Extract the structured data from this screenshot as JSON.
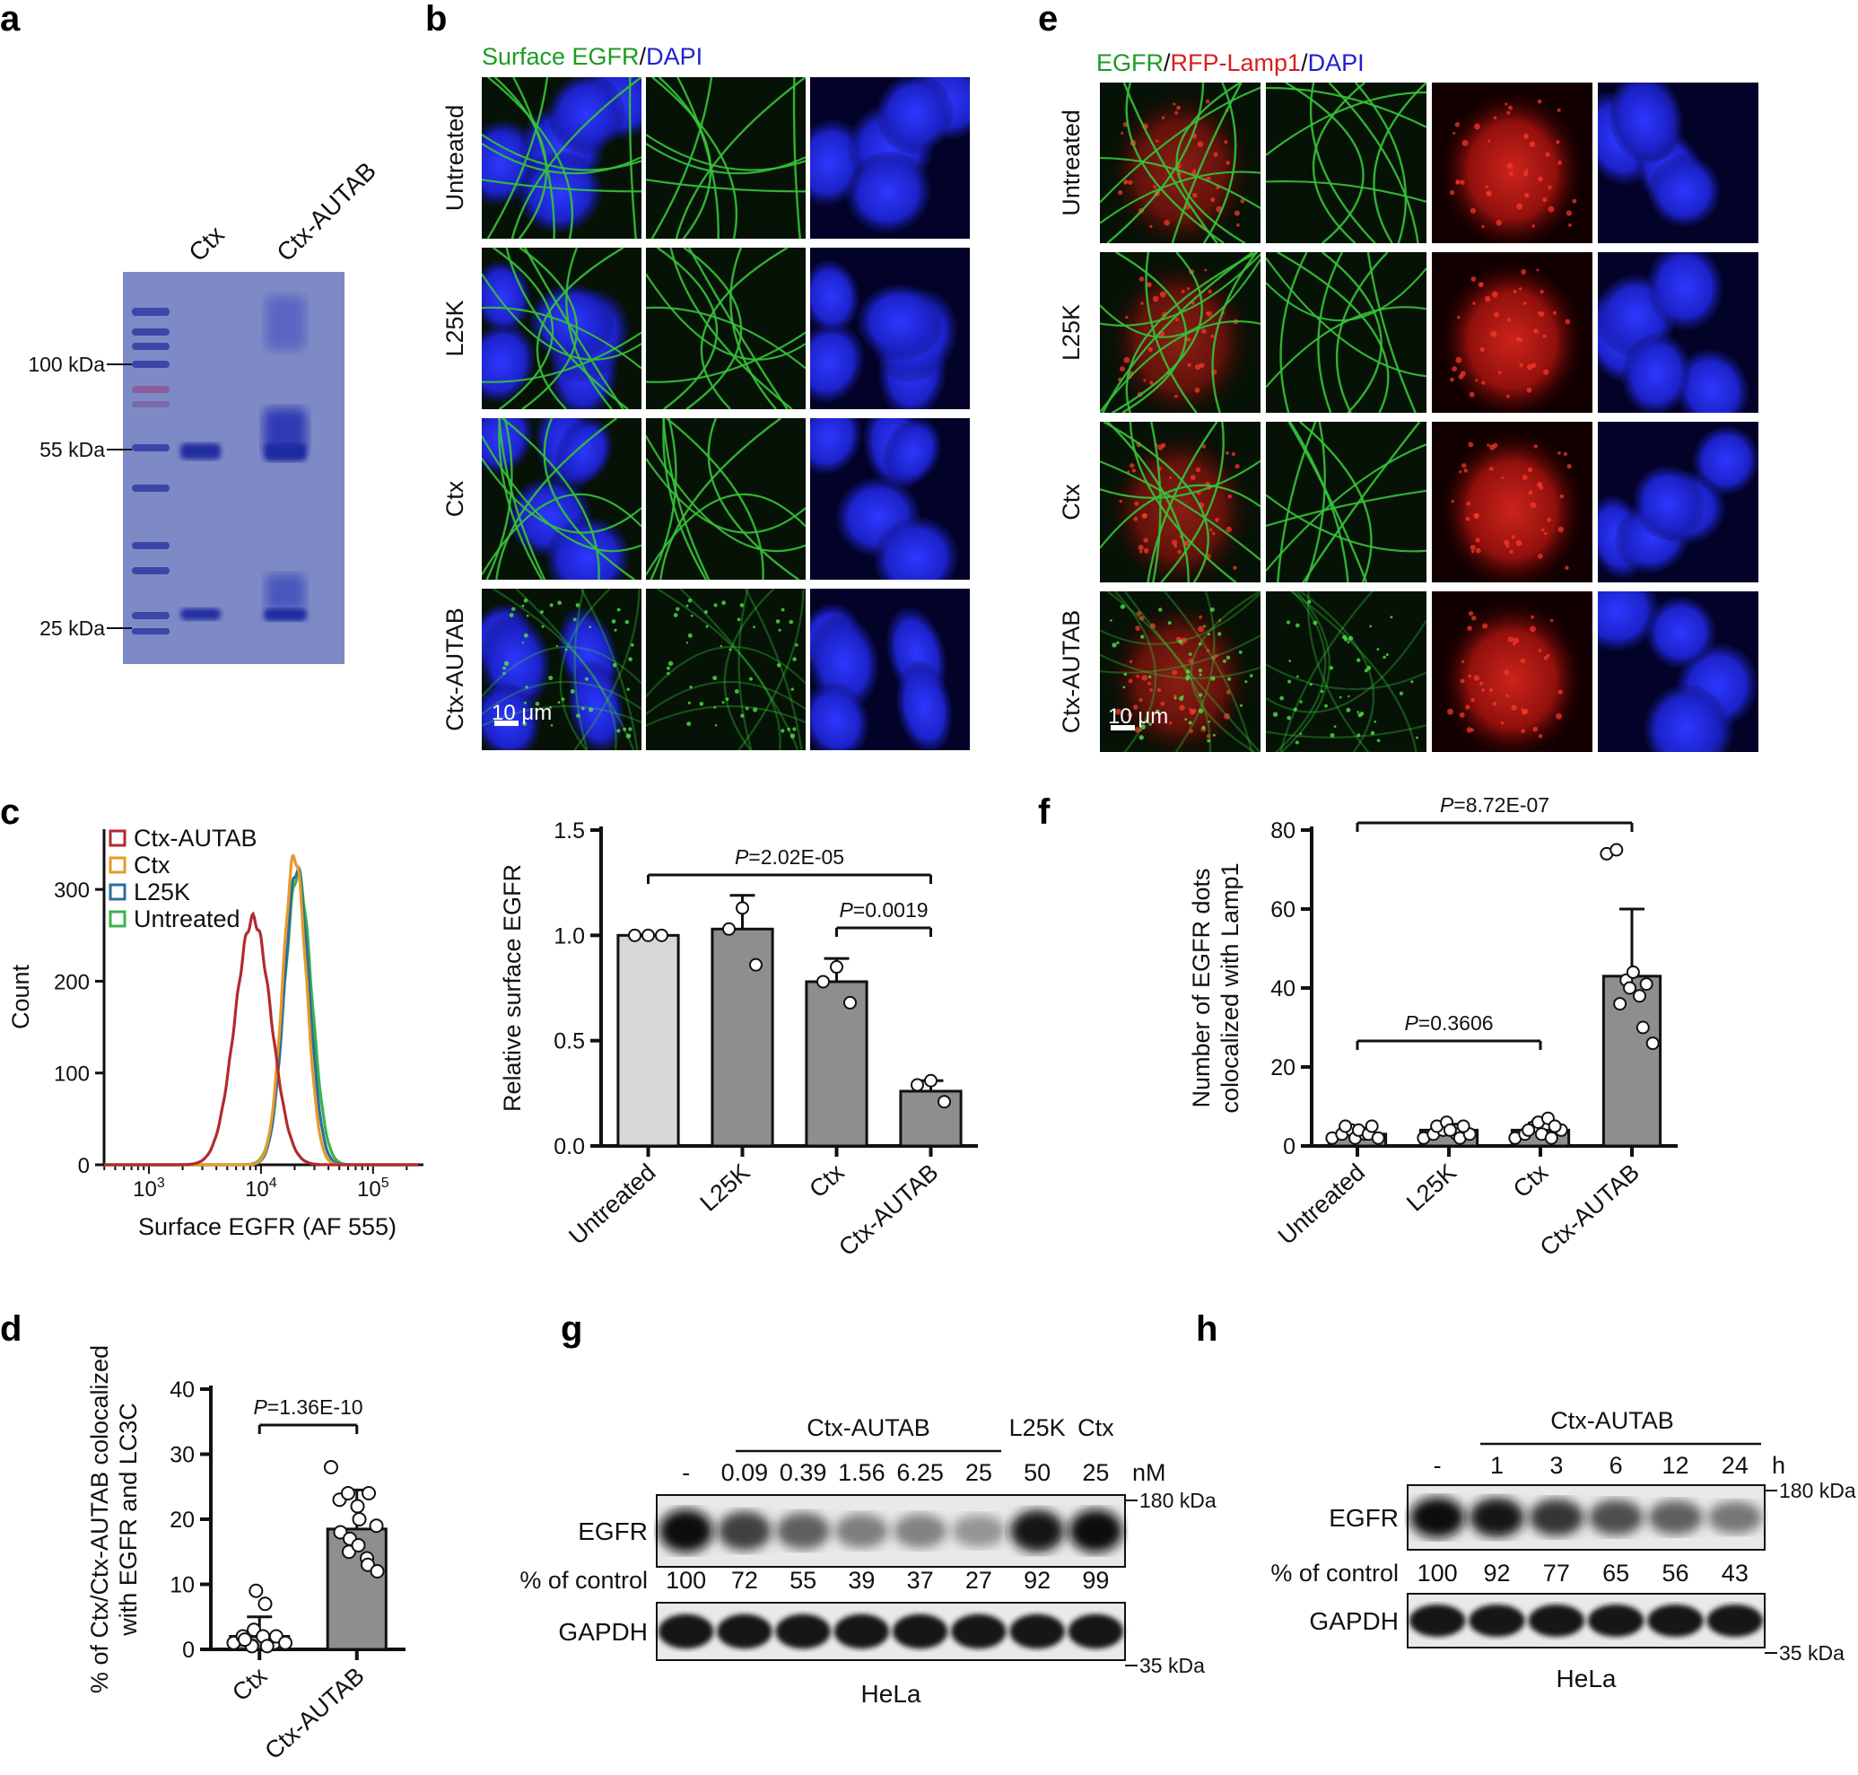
{
  "panel_labels": [
    "a",
    "b",
    "c",
    "d",
    "e",
    "f",
    "g",
    "h"
  ],
  "panel_a": {
    "lanes": [
      "Ctx",
      "Ctx-AUTAB"
    ],
    "markers": [
      "100 kDa",
      "55 kDa",
      "25 kDa"
    ],
    "colors": {
      "gel": "#7f8cc6",
      "band": "#2a36a8"
    }
  },
  "panel_b": {
    "title_green": "Surface EGFR",
    "title_sep": "/",
    "title_blue": "DAPI",
    "rows": [
      "Untreated",
      "L25K",
      "Ctx",
      "Ctx-AUTAB"
    ],
    "scale_bar": "10 μm"
  },
  "panel_e": {
    "title_green": "EGFR",
    "sep1": "/",
    "title_red": "RFP-Lamp1",
    "sep2": "/",
    "title_blue": "DAPI",
    "rows": [
      "Untreated",
      "L25K",
      "Ctx",
      "Ctx-AUTAB"
    ],
    "scale_bar": "10 μm"
  },
  "panel_c_hist": {
    "ylabel": "Count",
    "xlabel": "Surface EGFR (AF 555)",
    "yticks": [
      "0",
      "100",
      "200",
      "300"
    ],
    "xticks": [
      {
        "base": "10",
        "exp": "3"
      },
      {
        "base": "10",
        "exp": "4"
      },
      {
        "base": "10",
        "exp": "5"
      }
    ],
    "legend": [
      {
        "name": "Ctx-AUTAB",
        "color": "#b22a2f"
      },
      {
        "name": "Ctx",
        "color": "#e79a28"
      },
      {
        "name": "L25K",
        "color": "#2b6e9e"
      },
      {
        "name": "Untreated",
        "color": "#3bb34a"
      }
    ]
  },
  "chart_data": [
    {
      "type": "bar",
      "panel": "c",
      "categories": [
        "Untreated",
        "L25K",
        "Ctx",
        "Ctx-AUTAB"
      ],
      "values": [
        1.0,
        1.03,
        0.78,
        0.26
      ],
      "errors": [
        0.0,
        0.16,
        0.11,
        0.05
      ],
      "points": [
        [
          1.0,
          1.0,
          1.0
        ],
        [
          1.03,
          1.13,
          0.86
        ],
        [
          0.78,
          0.85,
          0.68
        ],
        [
          0.29,
          0.31,
          0.21
        ]
      ],
      "ylabel": "Relative surface EGFR",
      "ylim": [
        0,
        1.5
      ],
      "yticks": [
        "0.0",
        "0.5",
        "1.0",
        "1.5"
      ],
      "bar_colors": [
        "#d7d7d7",
        "#8e8e8e",
        "#8e8e8e",
        "#8e8e8e"
      ],
      "brackets": [
        {
          "from": 0,
          "to": 3,
          "p": "=2.02E-05"
        },
        {
          "from": 2,
          "to": 3,
          "p": "=0.0019"
        }
      ]
    },
    {
      "type": "bar",
      "panel": "f",
      "categories": [
        "Untreated",
        "L25K",
        "Ctx",
        "Ctx-AUTAB"
      ],
      "values": [
        3,
        4,
        4,
        43
      ],
      "errors": [
        1.5,
        1.5,
        1.8,
        17
      ],
      "points": [
        [
          2,
          3,
          4,
          5,
          2,
          3,
          4,
          3,
          2,
          5
        ],
        [
          2,
          3,
          4,
          5,
          6,
          3,
          4,
          2,
          3,
          5
        ],
        [
          2,
          3,
          5,
          4,
          6,
          7,
          3,
          2,
          4,
          5
        ],
        [
          74,
          75,
          42,
          36,
          40,
          38,
          44,
          30,
          26,
          41
        ]
      ],
      "ylabel_line1": "Number of EGFR dots",
      "ylabel_line2": "colocalized with Lamp1",
      "ylim": [
        0,
        80
      ],
      "yticks": [
        "0",
        "20",
        "40",
        "60",
        "80"
      ],
      "bar_colors": [
        "#8e8e8e",
        "#8e8e8e",
        "#8e8e8e",
        "#8e8e8e"
      ],
      "brackets": [
        {
          "from": 0,
          "to": 3,
          "p": "=8.72E-07"
        },
        {
          "from": 0,
          "to": 2,
          "p": "=0.3606"
        }
      ]
    },
    {
      "type": "bar",
      "panel": "d",
      "categories": [
        "Ctx",
        "Ctx-AUTAB"
      ],
      "values": [
        2,
        18.5
      ],
      "errors": [
        3,
        6
      ],
      "points": [
        [
          1,
          2,
          0.5,
          1.5,
          3,
          2,
          9,
          7,
          1,
          0.5,
          2,
          1
        ],
        [
          28,
          23,
          24,
          18,
          15,
          22,
          17,
          16,
          14,
          20,
          13,
          19,
          24,
          12
        ]
      ],
      "ylabel_line1": "% of Ctx/Ctx-AUTAB colocalized",
      "ylabel_line2": "with EGFR and LC3C",
      "ylim": [
        0,
        40
      ],
      "yticks": [
        "0",
        "10",
        "20",
        "30",
        "40"
      ],
      "bar_colors": [
        "#8e8e8e",
        "#8e8e8e"
      ],
      "brackets": [
        {
          "from": 0,
          "to": 1,
          "p": "=1.36E-10"
        }
      ]
    }
  ],
  "p_letter": "P",
  "panel_g": {
    "group_label": "Ctx-AUTAB",
    "col_labels": [
      "-",
      "0.09",
      "0.39",
      "1.56",
      "6.25",
      "25",
      "50",
      "25"
    ],
    "extra_labels": [
      "L25K",
      "Ctx"
    ],
    "unit": "nM",
    "rows": [
      "EGFR",
      "% of control",
      "GAPDH"
    ],
    "percent": [
      "100",
      "72",
      "55",
      "39",
      "37",
      "27",
      "92",
      "99"
    ],
    "band_intensity": [
      1.0,
      0.72,
      0.55,
      0.39,
      0.37,
      0.27,
      0.92,
      0.99
    ],
    "markers": [
      "180 kDa",
      "35 kDa"
    ],
    "cell": "HeLa"
  },
  "panel_h": {
    "group_label": "Ctx-AUTAB",
    "col_labels": [
      "-",
      "1",
      "3",
      "6",
      "12",
      "24"
    ],
    "unit": "h",
    "rows": [
      "EGFR",
      "% of control",
      "GAPDH"
    ],
    "percent": [
      "100",
      "92",
      "77",
      "65",
      "56",
      "43"
    ],
    "band_intensity": [
      1.0,
      0.92,
      0.77,
      0.65,
      0.56,
      0.43
    ],
    "markers": [
      "180 kDa",
      "35 kDa"
    ],
    "cell": "HeLa"
  }
}
